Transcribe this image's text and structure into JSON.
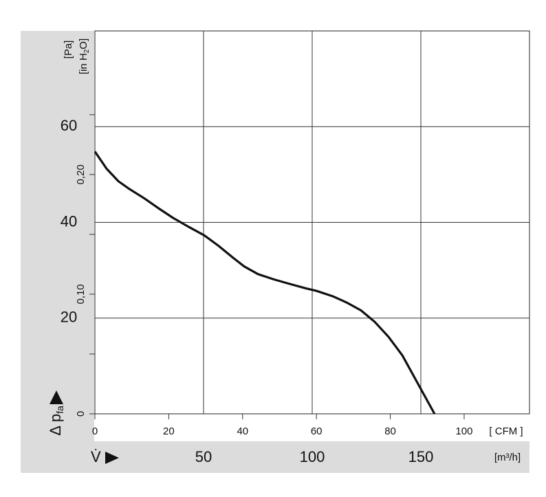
{
  "chart_data": {
    "type": "line",
    "ylabel": {
      "text": "Δ p",
      "sub": "fa"
    },
    "yunit": "[Pa]",
    "y2unit": {
      "pre": "[in H",
      "sub": "2",
      "post": "O]"
    },
    "xlabel": "V̇",
    "xunit": "[m³/h]",
    "x2unit": "[ CFM ]",
    "x": [
      0,
      5.4,
      10.8,
      15.8,
      22.8,
      29.1,
      36.1,
      43.4,
      50.3,
      56.9,
      63.9,
      68.7,
      75.0,
      82.3,
      89.2,
      97.2,
      101.9,
      109.8,
      116.1,
      122.5,
      128.8,
      135.1,
      141.5,
      147.8,
      156.3
    ],
    "series": [
      {
        "color": "#111111",
        "values": [
          54.8,
          51.2,
          48.6,
          47.0,
          45.0,
          43.0,
          40.9,
          39.0,
          37.3,
          35.1,
          32.5,
          30.8,
          29.2,
          28.1,
          27.2,
          26.2,
          25.7,
          24.5,
          23.2,
          21.6,
          19.2,
          16.1,
          12.2,
          7.0,
          0
        ]
      }
    ],
    "xlim": [
      0,
      200
    ],
    "xticks": [
      50,
      100,
      150
    ],
    "x2lim": [
      0,
      117.7
    ],
    "x2ticks": [
      0,
      20,
      40,
      60,
      80,
      100
    ],
    "ylim": [
      0,
      80
    ],
    "yticks": [
      20,
      40,
      60
    ],
    "y2lim": [
      0,
      0.32
    ],
    "y2ticks": [
      0,
      {
        "value": 0.1,
        "label": "0,10"
      },
      {
        "value": 0.2,
        "label": "0,20"
      }
    ],
    "y2minorticks": [
      0.05,
      0.15,
      0.25
    ],
    "grid": true
  }
}
